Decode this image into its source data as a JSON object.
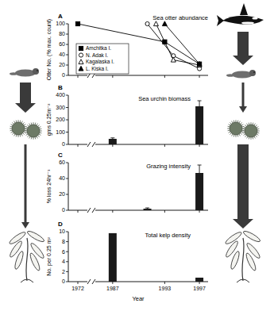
{
  "chart_data": [
    {
      "type": "line",
      "title": "Sea otter abundance",
      "annotations": [
        "A"
      ],
      "y_label": "Otter No. (% max. count)",
      "xlim": [
        1971,
        1998
      ],
      "xticks": [
        1972,
        1987,
        1993,
        1997
      ],
      "ylim": [
        0,
        100
      ],
      "yticks": [
        0,
        20,
        40,
        60,
        80,
        100
      ],
      "tick_labels": "y",
      "legend": "lower left",
      "grid": false,
      "series": [
        {
          "name": "Amchitka I.",
          "color": "#000000",
          "marker": "square",
          "x": [
            1972,
            1993,
            1997
          ],
          "values": [
            100,
            65,
            22
          ]
        },
        {
          "name": "N. Adak I.",
          "color": "#000000",
          "marker": "open-circle",
          "x": [
            1991,
            1994,
            1997
          ],
          "values": [
            100,
            38,
            13
          ]
        },
        {
          "name": "Kagalaska I.",
          "color": "#000000",
          "marker": "open-triangle",
          "x": [
            1992,
            1994,
            1997
          ],
          "values": [
            100,
            30,
            20
          ]
        },
        {
          "name": "L. Kiska I.",
          "color": "#000000",
          "marker": "triangle",
          "x": [
            1993,
            1997
          ],
          "values": [
            100,
            22
          ]
        }
      ]
    },
    {
      "type": "bar",
      "title": "Sea urchin biomass",
      "annotations": [
        "B"
      ],
      "y_label": "gms 0.25m⁻²",
      "xlim": [
        1971,
        1998
      ],
      "xticks": [
        1972,
        1987,
        1993,
        1997
      ],
      "ylim": [
        0,
        400
      ],
      "yticks": [
        0,
        100,
        200,
        300,
        400
      ],
      "tick_labels": "y",
      "grid": false,
      "color": "#1a1a1a",
      "x": [
        1987,
        1997
      ],
      "values": [
        45,
        310
      ],
      "errors": [
        8,
        45
      ]
    },
    {
      "type": "bar",
      "title": "Grazing intensity",
      "annotations": [
        "C"
      ],
      "y_label": "% loss 24hr⁻¹",
      "xlim": [
        1971,
        1998
      ],
      "xticks": [
        1972,
        1987,
        1993,
        1997
      ],
      "ylim": [
        0,
        60
      ],
      "yticks": [
        0,
        20,
        40,
        60
      ],
      "tick_labels": "y",
      "grid": false,
      "color": "#1a1a1a",
      "x": [
        1991,
        1997
      ],
      "values": [
        2,
        47
      ],
      "errors": [
        1,
        10
      ]
    },
    {
      "type": "bar",
      "title": "Total kelp density",
      "annotations": [
        "D"
      ],
      "y_label": "No. per 0.25 m²",
      "x_label": "Year",
      "xlim": [
        1971,
        1998
      ],
      "xticks": [
        1972,
        1987,
        1993,
        1997
      ],
      "ylim": [
        0,
        10
      ],
      "yticks": [
        0,
        2,
        4,
        6,
        8,
        10
      ],
      "grid": false,
      "color": "#1a1a1a",
      "x": [
        1987,
        1997
      ],
      "values": [
        9.7,
        0.8
      ]
    }
  ]
}
